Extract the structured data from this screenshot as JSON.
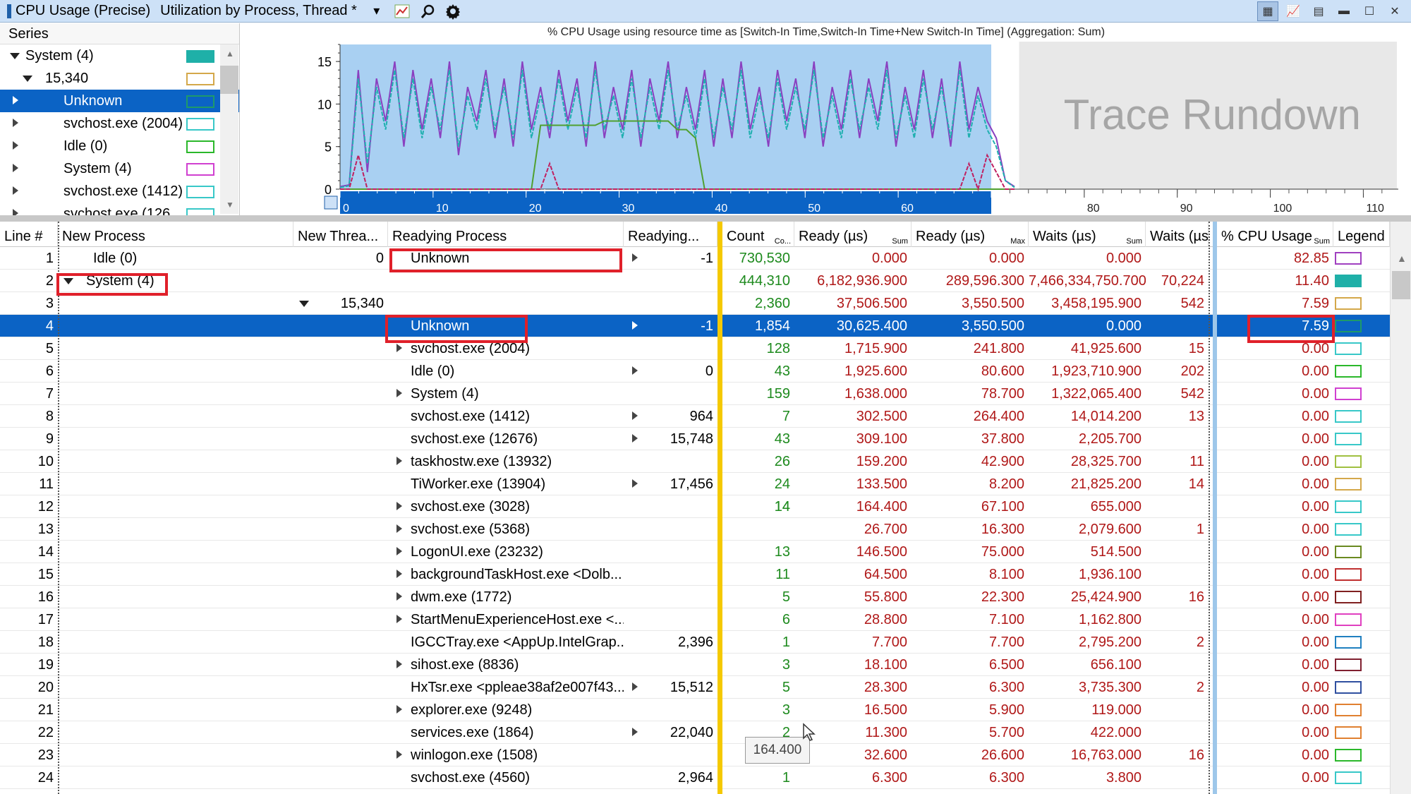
{
  "window": {
    "title": "CPU Usage (Precise)",
    "view": "Utilization by Process, Thread *"
  },
  "series_panel": {
    "header": "Series",
    "items": [
      {
        "label": "System (4)",
        "expand": "down",
        "indent": 0,
        "color": "#1fb0a8",
        "selected": false
      },
      {
        "label": "15,340",
        "expand": "down",
        "indent": 1,
        "color": "#d4a84a",
        "selected": false
      },
      {
        "label": "Unknown",
        "expand": "right",
        "indent": 2,
        "color": "#1e9a6a",
        "selected": true
      },
      {
        "label": "svchost.exe (2004)",
        "expand": "right",
        "indent": 2,
        "color": "#38c8c8",
        "selected": false
      },
      {
        "label": "Idle (0)",
        "expand": "right",
        "indent": 2,
        "color": "#2bb82b",
        "selected": false
      },
      {
        "label": "System (4)",
        "expand": "right",
        "indent": 2,
        "color": "#d040d0",
        "selected": false
      },
      {
        "label": "svchost.exe (1412)",
        "expand": "right",
        "indent": 2,
        "color": "#38c8c8",
        "selected": false
      },
      {
        "label": "svchost.exe (126",
        "expand": "right",
        "indent": 2,
        "color": "#38c8c8",
        "selected": false
      }
    ]
  },
  "chart_data": {
    "type": "line",
    "title": "% CPU Usage using resource time as [Switch-In Time,Switch-In Time+New Switch-In Time] (Aggregation: Sum)",
    "overlay_text": "Trace Rundown",
    "y_ticks": [
      "0",
      "5",
      "10",
      "15"
    ],
    "x_ticks": [
      "0",
      "10",
      "20",
      "30",
      "40",
      "50",
      "60",
      "70",
      "80",
      "90",
      "100",
      "110"
    ],
    "ylim": [
      0,
      17
    ],
    "xlim": [
      0,
      113
    ],
    "selection_range": [
      0,
      70
    ],
    "rundown_range": [
      73,
      113
    ],
    "series": [
      {
        "color": "#8a40c0",
        "values": [
          0.3,
          0.5,
          14,
          2,
          13,
          8,
          15,
          5,
          14,
          7,
          13,
          6,
          15,
          4,
          12,
          8,
          14,
          6,
          13,
          5,
          15,
          7,
          12,
          6,
          14,
          8,
          13,
          5,
          15,
          6,
          12,
          7,
          14,
          5,
          13,
          8,
          15,
          6,
          12,
          7,
          14,
          5,
          13,
          6,
          15,
          7,
          12,
          5,
          14,
          8,
          13,
          6,
          15,
          5,
          12,
          7,
          14,
          6,
          13,
          8,
          15,
          5,
          12,
          7,
          14,
          6,
          13,
          5,
          15,
          7,
          12,
          8,
          6,
          1,
          0.3
        ]
      },
      {
        "color": "#20b0b0",
        "values": [
          0.2,
          0.4,
          13,
          3,
          12,
          7,
          14,
          6,
          13,
          6,
          12,
          7,
          14,
          5,
          11,
          7,
          13,
          7,
          12,
          6,
          14,
          6,
          11,
          7,
          13,
          7,
          12,
          6,
          14,
          7,
          11,
          6,
          13,
          6,
          12,
          7,
          14,
          7,
          11,
          6,
          13,
          6,
          12,
          7,
          14,
          6,
          11,
          6,
          13,
          7,
          12,
          7,
          14,
          6,
          11,
          6,
          13,
          7,
          12,
          7,
          14,
          6,
          11,
          6,
          13,
          7,
          12,
          6,
          14,
          6,
          11,
          7,
          5,
          1,
          0.2
        ]
      },
      {
        "color": "#50a030",
        "values": [
          0,
          0,
          0,
          0,
          0,
          0,
          0,
          0,
          0,
          0,
          0,
          0,
          0,
          0,
          0,
          0,
          0,
          0,
          0,
          0,
          0,
          0,
          7.5,
          7.5,
          7.5,
          7.5,
          7.5,
          7.5,
          7.5,
          8,
          8,
          8,
          8,
          8,
          8,
          8,
          8,
          7,
          7,
          6,
          0,
          0,
          0,
          0,
          0,
          0,
          0,
          0,
          0,
          0,
          0,
          0,
          0,
          0,
          0,
          0,
          0,
          0,
          0,
          0,
          0,
          0,
          0,
          0,
          0,
          0,
          0,
          0,
          0,
          0,
          0,
          0,
          0,
          0,
          0
        ]
      },
      {
        "color": "#c02060",
        "values": [
          0,
          0,
          4,
          0,
          0,
          0,
          0,
          0,
          0,
          0,
          0,
          0,
          0,
          0,
          0,
          0,
          0,
          0,
          0,
          0,
          0,
          0,
          0,
          3,
          0,
          0,
          0,
          0,
          0,
          0,
          0,
          0,
          0,
          0,
          0,
          0,
          0,
          0,
          0,
          0,
          0,
          0,
          0,
          0,
          0,
          0,
          0,
          0,
          0,
          0,
          0,
          0,
          0,
          0,
          0,
          0,
          0,
          0,
          0,
          0,
          0,
          0,
          0,
          0,
          0,
          0,
          0,
          0,
          0,
          3,
          0,
          4,
          2,
          0,
          0
        ]
      }
    ]
  },
  "table": {
    "columns": [
      {
        "label": "Line #",
        "sub": ""
      },
      {
        "label": "New Process",
        "sub": ""
      },
      {
        "label": "New Threa...",
        "sub": ""
      },
      {
        "label": "Readying Process",
        "sub": ""
      },
      {
        "label": "Readying...",
        "sub": ""
      },
      {
        "label": "Count",
        "sub": "Co..."
      },
      {
        "label": "Ready (µs)",
        "sub": "Sum"
      },
      {
        "label": "Ready (µs)",
        "sub": "Max"
      },
      {
        "label": "Waits (µs)",
        "sub": "Sum"
      },
      {
        "label": "Waits (µs",
        "sub": ""
      },
      {
        "label": "% CPU Usage",
        "sub": "Sum"
      },
      {
        "label": "Legend",
        "sub": ""
      }
    ],
    "rows": [
      {
        "line": "1",
        "newproc": "Idle (0)",
        "np_indent": 1,
        "np_expand": "",
        "newthread": "0",
        "nt_expand": "",
        "readyproc": "Unknown",
        "rp_expand": "",
        "readythread": "-1",
        "rt_expand": "right",
        "count": "730,530",
        "ready_sum": "0.000",
        "ready_max": "0.000",
        "waits_sum": "0.000",
        "waits2": "",
        "cpu": "82.85",
        "legend": "#a040c0",
        "selected": false
      },
      {
        "line": "2",
        "newproc": "System (4)",
        "np_indent": 0,
        "np_expand": "down",
        "newthread": "",
        "nt_expand": "",
        "readyproc": "",
        "rp_expand": "",
        "readythread": "",
        "rt_expand": "",
        "count": "444,310",
        "ready_sum": "6,182,936.900",
        "ready_max": "289,596.300",
        "waits_sum": "7,466,334,750.700",
        "waits2": "70,224",
        "cpu": "11.40",
        "legend": "#1fb0a8",
        "selected": false
      },
      {
        "line": "3",
        "newproc": "",
        "np_indent": 0,
        "np_expand": "",
        "newthread": "15,340",
        "nt_expand": "down",
        "readyproc": "",
        "rp_expand": "",
        "readythread": "",
        "rt_expand": "",
        "count": "2,360",
        "ready_sum": "37,506.500",
        "ready_max": "3,550.500",
        "waits_sum": "3,458,195.900",
        "waits2": "542",
        "cpu": "7.59",
        "legend": "#d4a84a",
        "selected": false
      },
      {
        "line": "4",
        "newproc": "",
        "np_indent": 0,
        "np_expand": "",
        "newthread": "",
        "nt_expand": "",
        "readyproc": "Unknown",
        "rp_expand": "",
        "readythread": "-1",
        "rt_expand": "right",
        "count": "1,854",
        "ready_sum": "30,625.400",
        "ready_max": "3,550.500",
        "waits_sum": "0.000",
        "waits2": "",
        "cpu": "7.59",
        "legend": "#1e9a6a",
        "selected": true
      },
      {
        "line": "5",
        "newproc": "",
        "np_indent": 0,
        "np_expand": "",
        "newthread": "",
        "nt_expand": "",
        "readyproc": "svchost.exe (2004)",
        "rp_expand": "right",
        "readythread": "",
        "rt_expand": "",
        "count": "128",
        "ready_sum": "1,715.900",
        "ready_max": "241.800",
        "waits_sum": "41,925.600",
        "waits2": "15",
        "cpu": "0.00",
        "legend": "#38c8c8",
        "selected": false
      },
      {
        "line": "6",
        "newproc": "",
        "np_indent": 0,
        "np_expand": "",
        "newthread": "",
        "nt_expand": "",
        "readyproc": "Idle (0)",
        "rp_expand": "",
        "readythread": "0",
        "rt_expand": "right",
        "count": "43",
        "ready_sum": "1,925.600",
        "ready_max": "80.600",
        "waits_sum": "1,923,710.900",
        "waits2": "202",
        "cpu": "0.00",
        "legend": "#2bb82b",
        "selected": false
      },
      {
        "line": "7",
        "newproc": "",
        "np_indent": 0,
        "np_expand": "",
        "newthread": "",
        "nt_expand": "",
        "readyproc": "System (4)",
        "rp_expand": "right",
        "readythread": "",
        "rt_expand": "",
        "count": "159",
        "ready_sum": "1,638.000",
        "ready_max": "78.700",
        "waits_sum": "1,322,065.400",
        "waits2": "542",
        "cpu": "0.00",
        "legend": "#d040d0",
        "selected": false
      },
      {
        "line": "8",
        "newproc": "",
        "np_indent": 0,
        "np_expand": "",
        "newthread": "",
        "nt_expand": "",
        "readyproc": "svchost.exe (1412)",
        "rp_expand": "",
        "readythread": "964",
        "rt_expand": "right",
        "count": "7",
        "ready_sum": "302.500",
        "ready_max": "264.400",
        "waits_sum": "14,014.200",
        "waits2": "13",
        "cpu": "0.00",
        "legend": "#38c8c8",
        "selected": false
      },
      {
        "line": "9",
        "newproc": "",
        "np_indent": 0,
        "np_expand": "",
        "newthread": "",
        "nt_expand": "",
        "readyproc": "svchost.exe (12676)",
        "rp_expand": "",
        "readythread": "15,748",
        "rt_expand": "right",
        "count": "43",
        "ready_sum": "309.100",
        "ready_max": "37.800",
        "waits_sum": "2,205.700",
        "waits2": "",
        "cpu": "0.00",
        "legend": "#38c8c8",
        "selected": false
      },
      {
        "line": "10",
        "newproc": "",
        "np_indent": 0,
        "np_expand": "",
        "newthread": "",
        "nt_expand": "",
        "readyproc": "taskhostw.exe (13932)",
        "rp_expand": "right",
        "readythread": "",
        "rt_expand": "",
        "count": "26",
        "ready_sum": "159.200",
        "ready_max": "42.900",
        "waits_sum": "28,325.700",
        "waits2": "11",
        "cpu": "0.00",
        "legend": "#a0c040",
        "selected": false
      },
      {
        "line": "11",
        "newproc": "",
        "np_indent": 0,
        "np_expand": "",
        "newthread": "",
        "nt_expand": "",
        "readyproc": "TiWorker.exe (13904)",
        "rp_expand": "",
        "readythread": "17,456",
        "rt_expand": "right",
        "count": "24",
        "ready_sum": "133.500",
        "ready_max": "8.200",
        "waits_sum": "21,825.200",
        "waits2": "14",
        "cpu": "0.00",
        "legend": "#d4a84a",
        "selected": false
      },
      {
        "line": "12",
        "newproc": "",
        "np_indent": 0,
        "np_expand": "",
        "newthread": "",
        "nt_expand": "",
        "readyproc": "svchost.exe (3028)",
        "rp_expand": "right",
        "readythread": "",
        "rt_expand": "",
        "count": "14",
        "ready_sum": "164.400",
        "ready_max": "67.100",
        "waits_sum": "655.000",
        "waits2": "",
        "cpu": "0.00",
        "legend": "#38c8c8",
        "selected": false
      },
      {
        "line": "13",
        "newproc": "",
        "np_indent": 0,
        "np_expand": "",
        "newthread": "",
        "nt_expand": "",
        "readyproc": "svchost.exe (5368)",
        "rp_expand": "right",
        "readythread": "",
        "rt_expand": "",
        "count": "",
        "ready_sum": "26.700",
        "ready_max": "16.300",
        "waits_sum": "2,079.600",
        "waits2": "1",
        "cpu": "0.00",
        "legend": "#38c8c8",
        "selected": false
      },
      {
        "line": "14",
        "newproc": "",
        "np_indent": 0,
        "np_expand": "",
        "newthread": "",
        "nt_expand": "",
        "readyproc": "LogonUI.exe (23232)",
        "rp_expand": "right",
        "readythread": "",
        "rt_expand": "",
        "count": "13",
        "ready_sum": "146.500",
        "ready_max": "75.000",
        "waits_sum": "514.500",
        "waits2": "",
        "cpu": "0.00",
        "legend": "#6a8a20",
        "selected": false
      },
      {
        "line": "15",
        "newproc": "",
        "np_indent": 0,
        "np_expand": "",
        "newthread": "",
        "nt_expand": "",
        "readyproc": "backgroundTaskHost.exe <Dolb...",
        "rp_expand": "right",
        "readythread": "",
        "rt_expand": "",
        "count": "11",
        "ready_sum": "64.500",
        "ready_max": "8.100",
        "waits_sum": "1,936.100",
        "waits2": "",
        "cpu": "0.00",
        "legend": "#c03030",
        "selected": false
      },
      {
        "line": "16",
        "newproc": "",
        "np_indent": 0,
        "np_expand": "",
        "newthread": "",
        "nt_expand": "",
        "readyproc": "dwm.exe (1772)",
        "rp_expand": "right",
        "readythread": "",
        "rt_expand": "",
        "count": "5",
        "ready_sum": "55.800",
        "ready_max": "22.300",
        "waits_sum": "25,424.900",
        "waits2": "16",
        "cpu": "0.00",
        "legend": "#802020",
        "selected": false
      },
      {
        "line": "17",
        "newproc": "",
        "np_indent": 0,
        "np_expand": "",
        "newthread": "",
        "nt_expand": "",
        "readyproc": "StartMenuExperienceHost.exe <...",
        "rp_expand": "right",
        "readythread": "",
        "rt_expand": "",
        "count": "6",
        "ready_sum": "28.800",
        "ready_max": "7.100",
        "waits_sum": "1,162.800",
        "waits2": "",
        "cpu": "0.00",
        "legend": "#e040c0",
        "selected": false
      },
      {
        "line": "18",
        "newproc": "",
        "np_indent": 0,
        "np_expand": "",
        "newthread": "",
        "nt_expand": "",
        "readyproc": "IGCCTray.exe <AppUp.IntelGrap...",
        "rp_expand": "",
        "readythread": "2,396",
        "rt_expand": "",
        "count": "1",
        "ready_sum": "7.700",
        "ready_max": "7.700",
        "waits_sum": "2,795.200",
        "waits2": "2",
        "cpu": "0.00",
        "legend": "#2080c0",
        "selected": false
      },
      {
        "line": "19",
        "newproc": "",
        "np_indent": 0,
        "np_expand": "",
        "newthread": "",
        "nt_expand": "",
        "readyproc": "sihost.exe (8836)",
        "rp_expand": "right",
        "readythread": "",
        "rt_expand": "",
        "count": "3",
        "ready_sum": "18.100",
        "ready_max": "6.500",
        "waits_sum": "656.100",
        "waits2": "",
        "cpu": "0.00",
        "legend": "#802030",
        "selected": false
      },
      {
        "line": "20",
        "newproc": "",
        "np_indent": 0,
        "np_expand": "",
        "newthread": "",
        "nt_expand": "",
        "readyproc": "HxTsr.exe <ppleae38af2e007f43...",
        "rp_expand": "",
        "readythread": "15,512",
        "rt_expand": "right",
        "count": "5",
        "ready_sum": "28.300",
        "ready_max": "6.300",
        "waits_sum": "3,735.300",
        "waits2": "2",
        "cpu": "0.00",
        "legend": "#3050a0",
        "selected": false
      },
      {
        "line": "21",
        "newproc": "",
        "np_indent": 0,
        "np_expand": "",
        "newthread": "",
        "nt_expand": "",
        "readyproc": "explorer.exe (9248)",
        "rp_expand": "right",
        "readythread": "",
        "rt_expand": "",
        "count": "3",
        "ready_sum": "16.500",
        "ready_max": "5.900",
        "waits_sum": "119.000",
        "waits2": "",
        "cpu": "0.00",
        "legend": "#e08030",
        "selected": false
      },
      {
        "line": "22",
        "newproc": "",
        "np_indent": 0,
        "np_expand": "",
        "newthread": "",
        "nt_expand": "",
        "readyproc": "services.exe (1864)",
        "rp_expand": "",
        "readythread": "22,040",
        "rt_expand": "right",
        "count": "2",
        "ready_sum": "11.300",
        "ready_max": "5.700",
        "waits_sum": "422.000",
        "waits2": "",
        "cpu": "0.00",
        "legend": "#e08030",
        "selected": false
      },
      {
        "line": "23",
        "newproc": "",
        "np_indent": 0,
        "np_expand": "",
        "newthread": "",
        "nt_expand": "",
        "readyproc": "winlogon.exe (1508)",
        "rp_expand": "right",
        "readythread": "",
        "rt_expand": "",
        "count": "2",
        "ready_sum": "32.600",
        "ready_max": "26.600",
        "waits_sum": "16,763.000",
        "waits2": "16",
        "cpu": "0.00",
        "legend": "#2bb82b",
        "selected": false
      },
      {
        "line": "24",
        "newproc": "",
        "np_indent": 0,
        "np_expand": "",
        "newthread": "",
        "nt_expand": "",
        "readyproc": "svchost.exe (4560)",
        "rp_expand": "",
        "readythread": "2,964",
        "rt_expand": "",
        "count": "1",
        "ready_sum": "6.300",
        "ready_max": "6.300",
        "waits_sum": "3.800",
        "waits2": "",
        "cpu": "0.00",
        "legend": "#38c8c8",
        "selected": false
      }
    ],
    "tooltip": "164.400",
    "row12_count_partial": "14"
  }
}
